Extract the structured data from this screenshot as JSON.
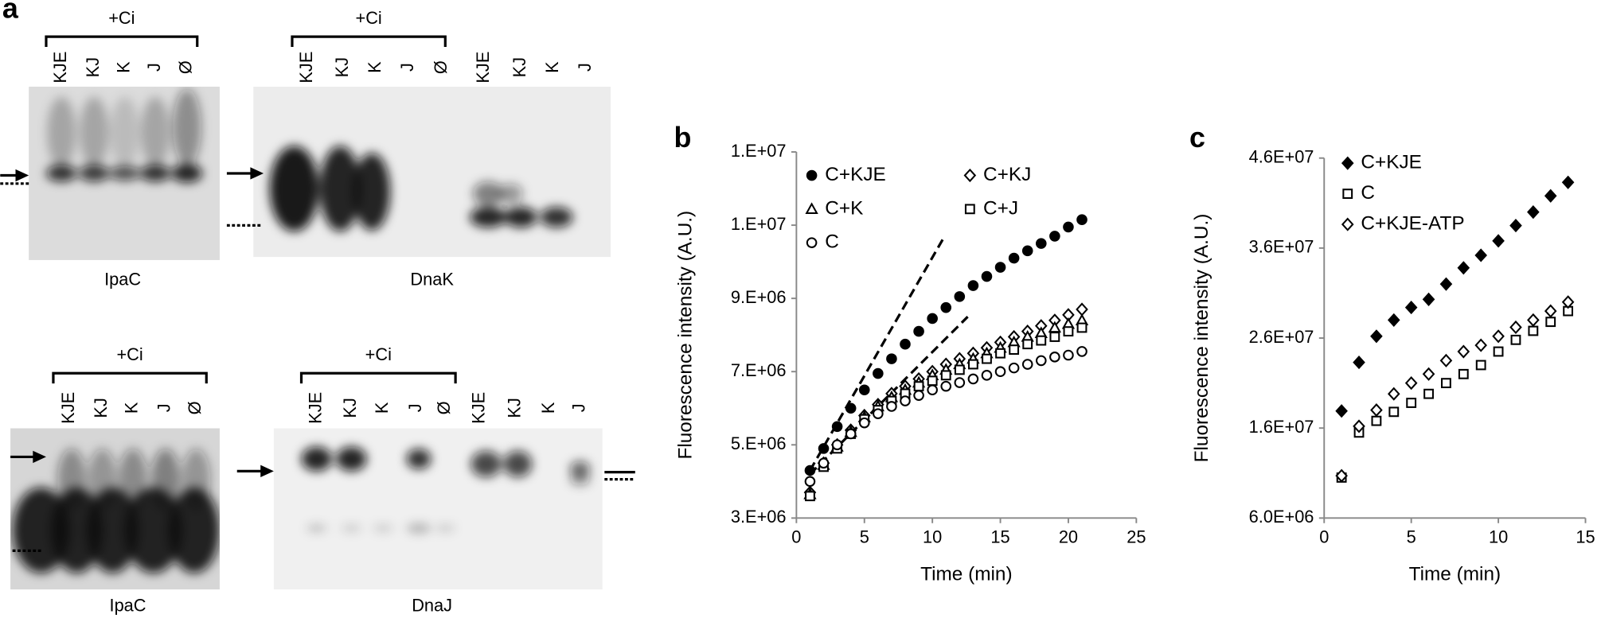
{
  "panel_a": {
    "label": "a",
    "gels": [
      {
        "bracket": "+Ci",
        "lanes": [
          "KJE",
          "KJ",
          "K",
          "J",
          "Ø"
        ],
        "name": "IpaC"
      },
      {
        "bracket": "+Ci",
        "lanes": [
          "KJE",
          "KJ",
          "K",
          "J",
          "Ø",
          "KJE",
          "KJ",
          "K",
          "J"
        ],
        "name": "DnaK"
      },
      {
        "bracket": "+Ci",
        "lanes": [
          "KJE",
          "KJ",
          "K",
          "J",
          "Ø"
        ],
        "name": "IpaC"
      },
      {
        "bracket": "+Ci",
        "lanes": [
          "KJE",
          "KJ",
          "K",
          "J",
          "Ø",
          "KJE",
          "KJ",
          "K",
          "J"
        ],
        "name": "DnaJ"
      }
    ]
  },
  "chart_data": [
    {
      "type": "scatter",
      "panel": "b",
      "x_label": "Time (min)",
      "y_label": "Fluorescence intensity (A.U.)",
      "xlim": [
        0,
        25
      ],
      "xticks": [
        0,
        5,
        10,
        15,
        20,
        25
      ],
      "ylim": [
        3000000,
        13000000
      ],
      "yticks": [
        {
          "value": 3000000,
          "label": "3.E+06"
        },
        {
          "value": 5000000,
          "label": "5.E+06"
        },
        {
          "value": 7000000,
          "label": "7.E+06"
        },
        {
          "value": 9000000,
          "label": "9.E+06"
        },
        {
          "value": 11000000,
          "label": "1.E+07"
        },
        {
          "value": 13000000,
          "label": "1.E+07"
        }
      ],
      "x": [
        1,
        2,
        3,
        4,
        5,
        6,
        7,
        8,
        9,
        10,
        11,
        12,
        13,
        14,
        15,
        16,
        17,
        18,
        19,
        20,
        21
      ],
      "series": [
        {
          "name": "C+KJE",
          "color": "#000000",
          "marker": "circle",
          "filled": true,
          "values": [
            4300000,
            4900000,
            5500000,
            6000000,
            6500000,
            6950000,
            7350000,
            7750000,
            8100000,
            8450000,
            8750000,
            9050000,
            9350000,
            9600000,
            9850000,
            10100000,
            10300000,
            10500000,
            10700000,
            10950000,
            11150000
          ]
        },
        {
          "name": "C+KJ",
          "color": "#000000",
          "marker": "diamond",
          "filled": false,
          "values": [
            3700000,
            4500000,
            5000000,
            5400000,
            5800000,
            6100000,
            6400000,
            6600000,
            6800000,
            7000000,
            7200000,
            7350000,
            7500000,
            7650000,
            7800000,
            7950000,
            8100000,
            8250000,
            8400000,
            8550000,
            8700000
          ]
        },
        {
          "name": "C+K",
          "color": "#000000",
          "marker": "triangle",
          "filled": false,
          "values": [
            3650000,
            4450000,
            4950000,
            5350000,
            5750000,
            6050000,
            6300000,
            6500000,
            6700000,
            6900000,
            7050000,
            7200000,
            7350000,
            7500000,
            7650000,
            7800000,
            7950000,
            8050000,
            8200000,
            8300000,
            8400000
          ]
        },
        {
          "name": "C+J",
          "color": "#000000",
          "marker": "square",
          "filled": false,
          "values": [
            3600000,
            4400000,
            4900000,
            5300000,
            5700000,
            5950000,
            6200000,
            6400000,
            6600000,
            6750000,
            6900000,
            7050000,
            7200000,
            7350000,
            7500000,
            7600000,
            7750000,
            7850000,
            7950000,
            8100000,
            8200000
          ]
        },
        {
          "name": "C",
          "color": "#000000",
          "marker": "circle",
          "filled": false,
          "values": [
            4000000,
            4500000,
            5000000,
            5300000,
            5600000,
            5850000,
            6050000,
            6200000,
            6350000,
            6500000,
            6600000,
            6700000,
            6800000,
            6900000,
            7000000,
            7100000,
            7200000,
            7300000,
            7400000,
            7450000,
            7550000
          ]
        }
      ],
      "trend_lines": [
        {
          "x": [
            1,
            10.9
          ],
          "y": [
            4300000,
            10700000
          ]
        },
        {
          "x": [
            1,
            12.6
          ],
          "y": [
            4200000,
            8500000
          ]
        }
      ]
    },
    {
      "type": "scatter",
      "panel": "c",
      "x_label": "Time (min)",
      "y_label": "Fluorescence intensity (A.U.)",
      "xlim": [
        0,
        15
      ],
      "xticks": [
        0,
        5,
        10,
        15
      ],
      "ylim": [
        6000000,
        46000000
      ],
      "yticks": [
        {
          "value": 6000000,
          "label": "6.0E+06"
        },
        {
          "value": 16000000,
          "label": "1.6E+07"
        },
        {
          "value": 26000000,
          "label": "2.6E+07"
        },
        {
          "value": 36000000,
          "label": "3.6E+07"
        },
        {
          "value": 46000000,
          "label": "4.6E+07"
        }
      ],
      "x": [
        1,
        2,
        3,
        4,
        5,
        6,
        7,
        8,
        9,
        10,
        11,
        12,
        13,
        14
      ],
      "series": [
        {
          "name": "C+KJE",
          "color": "#000000",
          "marker": "diamond",
          "filled": true,
          "values": [
            17900000,
            23300000,
            26200000,
            28000000,
            29400000,
            30300000,
            32000000,
            33800000,
            35200000,
            36800000,
            38500000,
            40000000,
            41800000,
            43300000
          ]
        },
        {
          "name": "C",
          "color": "#000000",
          "marker": "square",
          "filled": false,
          "values": [
            10500000,
            15500000,
            16800000,
            17800000,
            18800000,
            19800000,
            21000000,
            22000000,
            23000000,
            24500000,
            25800000,
            26800000,
            27800000,
            29000000
          ]
        },
        {
          "name": "C+KJE-ATP",
          "color": "#000000",
          "marker": "diamond",
          "filled": false,
          "values": [
            10700000,
            16200000,
            18000000,
            19800000,
            21000000,
            22000000,
            23500000,
            24500000,
            25200000,
            26200000,
            27200000,
            28000000,
            29000000,
            30000000
          ]
        }
      ]
    }
  ]
}
